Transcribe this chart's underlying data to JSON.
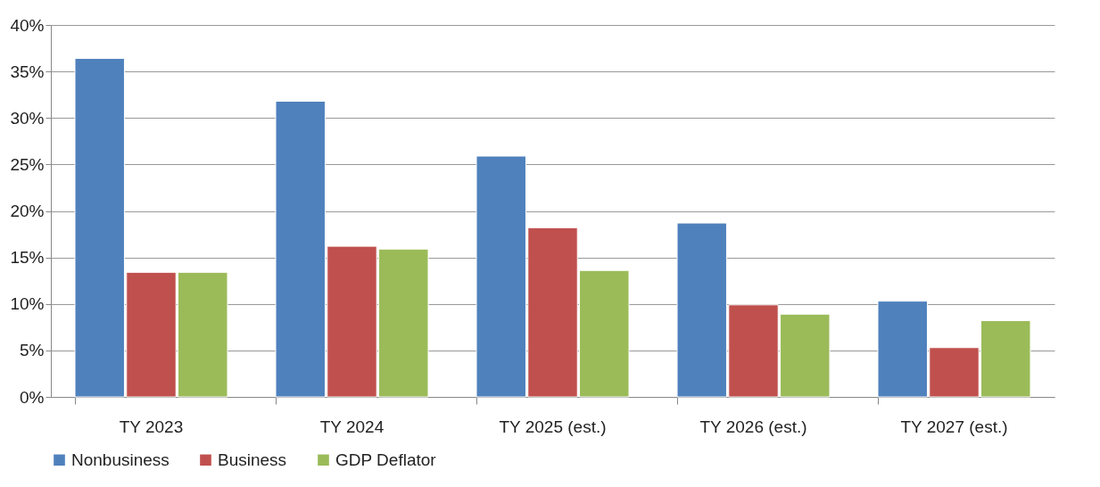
{
  "chart_data": {
    "type": "bar",
    "categories": [
      "TY 2023",
      "TY 2024",
      "TY 2025 (est.)",
      "TY 2026 (est.)",
      "TY 2027 (est.)"
    ],
    "series": [
      {
        "name": "Nonbusiness",
        "color": "#4f81bd",
        "values": [
          36.4,
          31.8,
          25.9,
          18.7,
          10.3
        ]
      },
      {
        "name": "Business",
        "color": "#c0504d",
        "values": [
          13.4,
          16.2,
          18.2,
          9.9,
          5.3
        ]
      },
      {
        "name": "GDP Deflator",
        "color": "#9bbb59",
        "values": [
          13.4,
          15.9,
          13.6,
          8.9,
          8.2
        ]
      }
    ],
    "ylim": [
      0,
      40
    ],
    "yticks": [
      {
        "value": 0,
        "label": "0%"
      },
      {
        "value": 5,
        "label": "5%"
      },
      {
        "value": 10,
        "label": "10%"
      },
      {
        "value": 15,
        "label": "15%"
      },
      {
        "value": 20,
        "label": "20%"
      },
      {
        "value": 25,
        "label": "25%"
      },
      {
        "value": 30,
        "label": "30%"
      },
      {
        "value": 35,
        "label": "35%"
      },
      {
        "value": 40,
        "label": "40%"
      }
    ],
    "grid": "y",
    "legend": "bottom"
  }
}
